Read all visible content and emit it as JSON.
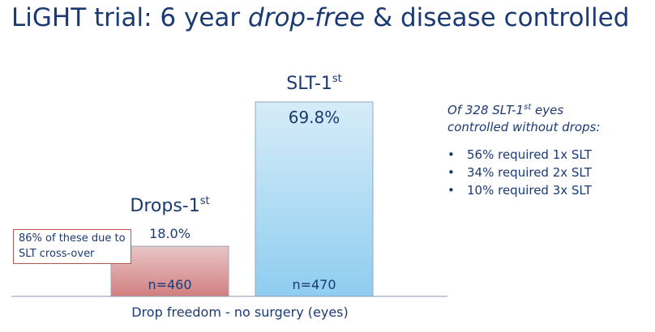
{
  "title": {
    "part1": "LiGHT trial: 6 year ",
    "emphasis": "drop-free",
    "part2": " & disease controlled"
  },
  "chart_data": {
    "type": "bar",
    "xlabel": "Drop freedom - no surgery (eyes)",
    "ylim": [
      0,
      75
    ],
    "categories": [
      {
        "name": "Drops-1",
        "sup": "st",
        "value": 18.0,
        "value_label": "18.0%",
        "n": "n=460",
        "color_top": "#e8c6c6",
        "color_bottom": "#d27f80"
      },
      {
        "name": "SLT-1",
        "sup": "st",
        "value": 69.8,
        "value_label": "69.8%",
        "n": "n=470",
        "color_top": "#d6ecf8",
        "color_bottom": "#8fcdf0"
      }
    ]
  },
  "callout": {
    "text": "86% of these due to SLT cross-over",
    "border_color": "#c0524f"
  },
  "sidebox": {
    "intro_line1_a": "Of 328 SLT-1",
    "intro_line1_sup": "st",
    "intro_line1_b": " eyes",
    "intro_line2": "controlled without drops:",
    "bullet_char": "•",
    "bullets": [
      "56% required 1x SLT",
      "34% required 2x SLT",
      "10% required 3x SLT"
    ]
  }
}
